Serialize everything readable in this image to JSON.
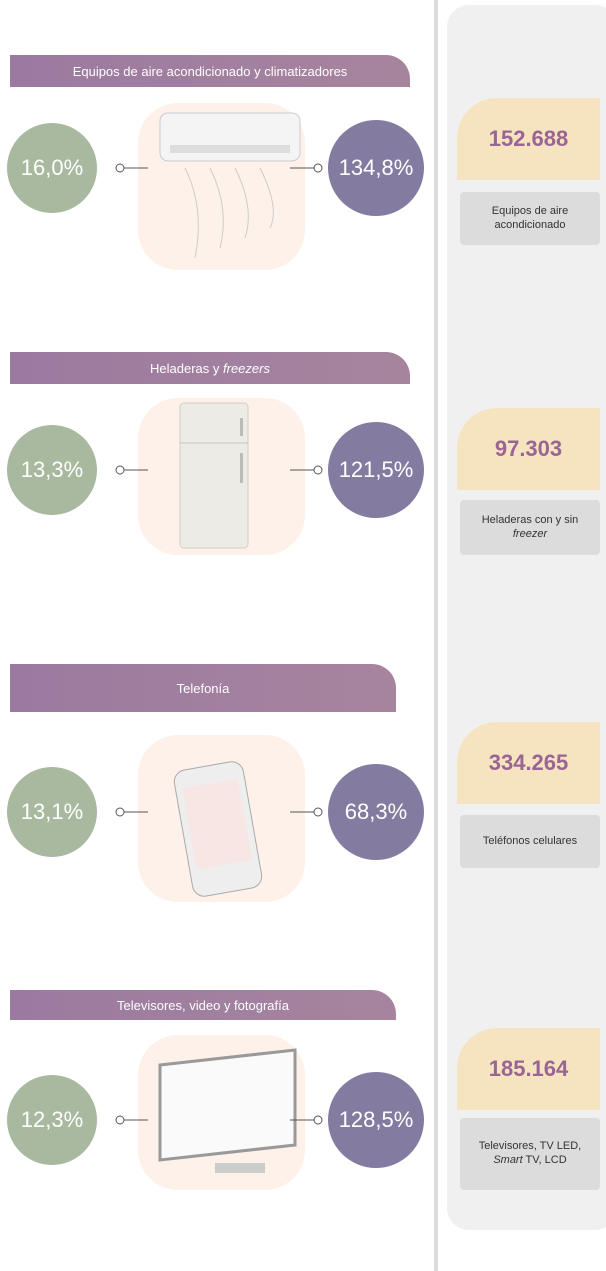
{
  "sections": [
    {
      "title": [
        {
          "text": "Equipos de aire acondicionado y climatizadores"
        }
      ],
      "left": "16,0%",
      "right": "134,8%",
      "count": "152.688",
      "description": [
        {
          "text": "Equipos de aire acondicionado"
        }
      ]
    },
    {
      "title": [
        {
          "text": "Heladeras y"
        },
        {
          "text": "freezers",
          "italic": true
        }
      ],
      "left": "13,3%",
      "right": "121,5%",
      "count": "97.303",
      "description": [
        {
          "text": "Heladeras con y sin"
        },
        {
          "text": "freezer",
          "italic": true
        }
      ]
    },
    {
      "title": [
        {
          "text": "Telefonía"
        }
      ],
      "left": "13,1%",
      "right": "68,3%",
      "count": "334.265",
      "description": [
        {
          "text": "Teléfonos celulares"
        }
      ]
    },
    {
      "title": [
        {
          "text": "Televisores, video y fotografía"
        }
      ],
      "left": "12,3%",
      "right": "128,5%",
      "count": "185.164",
      "description": [
        {
          "text": "Televisores, TV LED,"
        },
        {
          "text": "Smart",
          "italic": true
        },
        {
          "text": "TV, LCD"
        }
      ]
    }
  ]
}
